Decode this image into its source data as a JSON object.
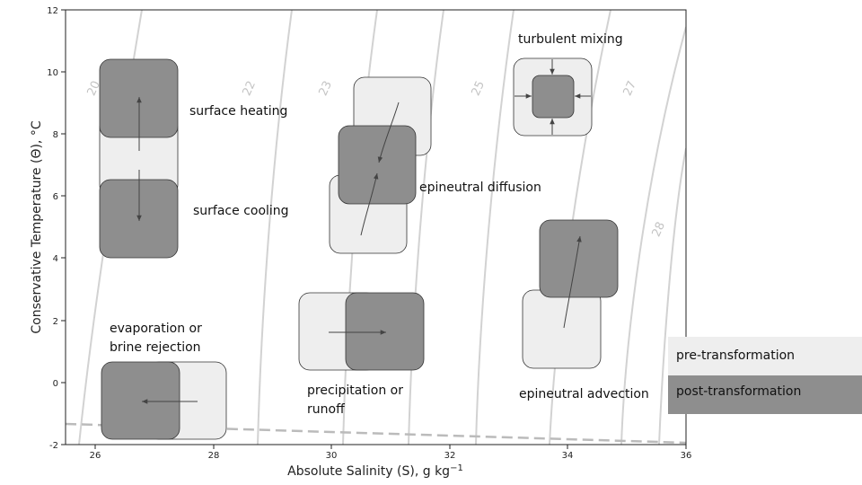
{
  "axes": {
    "xlabel": "Absolute Salinity (S), g kg",
    "xlabel_sup": "−1",
    "ylabel": "Conservative Temperature (Θ), °C",
    "xticks": [
      26,
      28,
      30,
      32,
      34,
      36
    ],
    "yticks": [
      -2,
      0,
      2,
      4,
      6,
      8,
      10,
      12
    ],
    "xlim": [
      25.5,
      36
    ],
    "ylim": [
      -2,
      12
    ]
  },
  "isopycnals": [
    {
      "label": "20"
    },
    {
      "label": "22"
    },
    {
      "label": "23"
    },
    {
      "label": "25"
    },
    {
      "label": "27"
    },
    {
      "label": "28"
    }
  ],
  "processes": [
    {
      "name": "surface_heating",
      "label": "surface heating"
    },
    {
      "name": "surface_cooling",
      "label": "surface cooling"
    },
    {
      "name": "epineutral_diffusion",
      "label": "epineutral diffusion"
    },
    {
      "name": "turbulent_mixing",
      "label": "turbulent mixing"
    },
    {
      "name": "evaporation",
      "label_line1": "evaporation or",
      "label_line2": "brine rejection"
    },
    {
      "name": "precipitation",
      "label_line1": "precipitation or",
      "label_line2": "runoff"
    },
    {
      "name": "epineutral_advection",
      "label": "epineutral advection"
    }
  ],
  "legend": {
    "pre": "pre-transformation",
    "post": "post-transformation",
    "pre_color": "#eeeeee",
    "post_color": "#8e8e8e"
  },
  "colors": {
    "isopycnal": "#d2d2d2",
    "freezing_line": "#bbbbbb",
    "box_edge": "#333333",
    "arrow": "#444444"
  }
}
